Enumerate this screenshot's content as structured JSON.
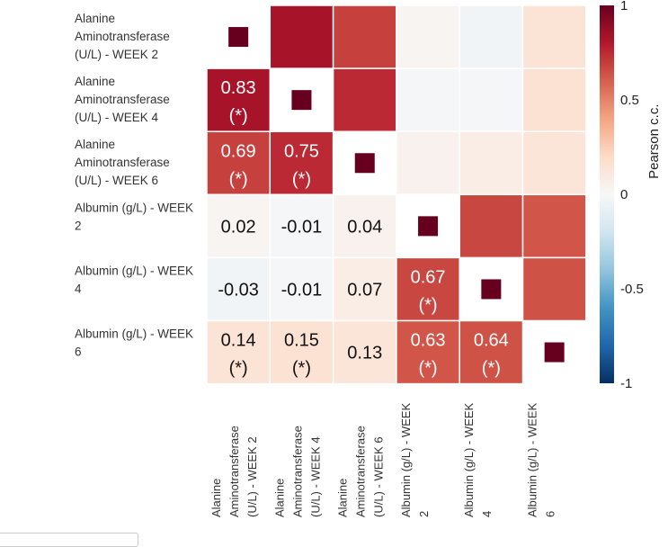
{
  "chart_data": {
    "type": "heatmap",
    "rows": [
      "Alanine Aminotransferase (U/L) - WEEK 2",
      "Alanine Aminotransferase (U/L) - WEEK 4",
      "Alanine Aminotransferase (U/L) - WEEK 6",
      "Albumin (g/L) - WEEK 2",
      "Albumin (g/L) - WEEK 4",
      "Albumin (g/L) - WEEK 6"
    ],
    "row_label_lines": [
      [
        "Alanine",
        "Aminotransferase",
        "(U/L) - WEEK 2"
      ],
      [
        "Alanine",
        "Aminotransferase",
        "(U/L) - WEEK 4"
      ],
      [
        "Alanine",
        "Aminotransferase",
        "(U/L) - WEEK 6"
      ],
      [
        "Albumin (g/L) - WEEK",
        "2"
      ],
      [
        "Albumin (g/L) - WEEK",
        "4"
      ],
      [
        "Albumin (g/L) - WEEK",
        "6"
      ]
    ],
    "column_label_lines": [
      [
        "Alanine",
        "Aminotransferase",
        "(U/L) - WEEK 2"
      ],
      [
        "Alanine",
        "Aminotransferase",
        "(U/L) - WEEK 4"
      ],
      [
        "Alanine",
        "Aminotransferase",
        "(U/L) - WEEK 6"
      ],
      [
        "Albumin (g/L) - WEEK",
        "2"
      ],
      [
        "Albumin (g/L) - WEEK",
        "4"
      ],
      [
        "Albumin (g/L) - WEEK",
        "6"
      ]
    ],
    "matrix": [
      [
        1.0,
        0.83,
        0.69,
        0.02,
        -0.03,
        0.14
      ],
      [
        0.83,
        1.0,
        0.75,
        -0.01,
        -0.01,
        0.15
      ],
      [
        0.69,
        0.75,
        1.0,
        0.04,
        0.07,
        0.13
      ],
      [
        0.02,
        -0.01,
        0.04,
        1.0,
        0.67,
        0.63
      ],
      [
        -0.03,
        -0.01,
        0.07,
        0.67,
        1.0,
        0.64
      ],
      [
        0.14,
        0.15,
        0.13,
        0.63,
        0.64,
        1.0
      ]
    ],
    "significant": [
      [
        true,
        true,
        true,
        false,
        false,
        true
      ],
      [
        true,
        true,
        true,
        false,
        false,
        true
      ],
      [
        true,
        true,
        true,
        false,
        false,
        false
      ],
      [
        false,
        false,
        false,
        true,
        true,
        true
      ],
      [
        false,
        false,
        false,
        true,
        true,
        true
      ],
      [
        true,
        true,
        false,
        true,
        true,
        true
      ]
    ],
    "labels": {
      "0.83": "0.83",
      "0.69": "0.69",
      "0.75": "0.75",
      "0.02": "0.02",
      "-0.01": "-0.01",
      "0.04": "0.04",
      "-0.03": "-0.03",
      "0.07": "0.07",
      "0.67": "0.67",
      "0.14": "0.14",
      "0.15": "0.15",
      "0.13": "0.13",
      "0.63": "0.63",
      "0.64": "0.64"
    },
    "significance_marker": "(*)",
    "value_labels_shown": "lower-triangle",
    "diagonal_marker": "square",
    "colorbar": {
      "title": "Pearson c.c.",
      "range": [
        -1,
        1
      ],
      "ticks": [
        1,
        0.5,
        0,
        -0.5,
        -1
      ],
      "tick_labels": [
        "1",
        "0.5",
        "0",
        "-0.5",
        "-1"
      ],
      "colors": [
        "#053061",
        "#2166ac",
        "#4393c3",
        "#92c5de",
        "#d1e5f0",
        "#f7f7f7",
        "#fddbc7",
        "#f4a582",
        "#d6604d",
        "#b2182b",
        "#67001f"
      ]
    }
  }
}
